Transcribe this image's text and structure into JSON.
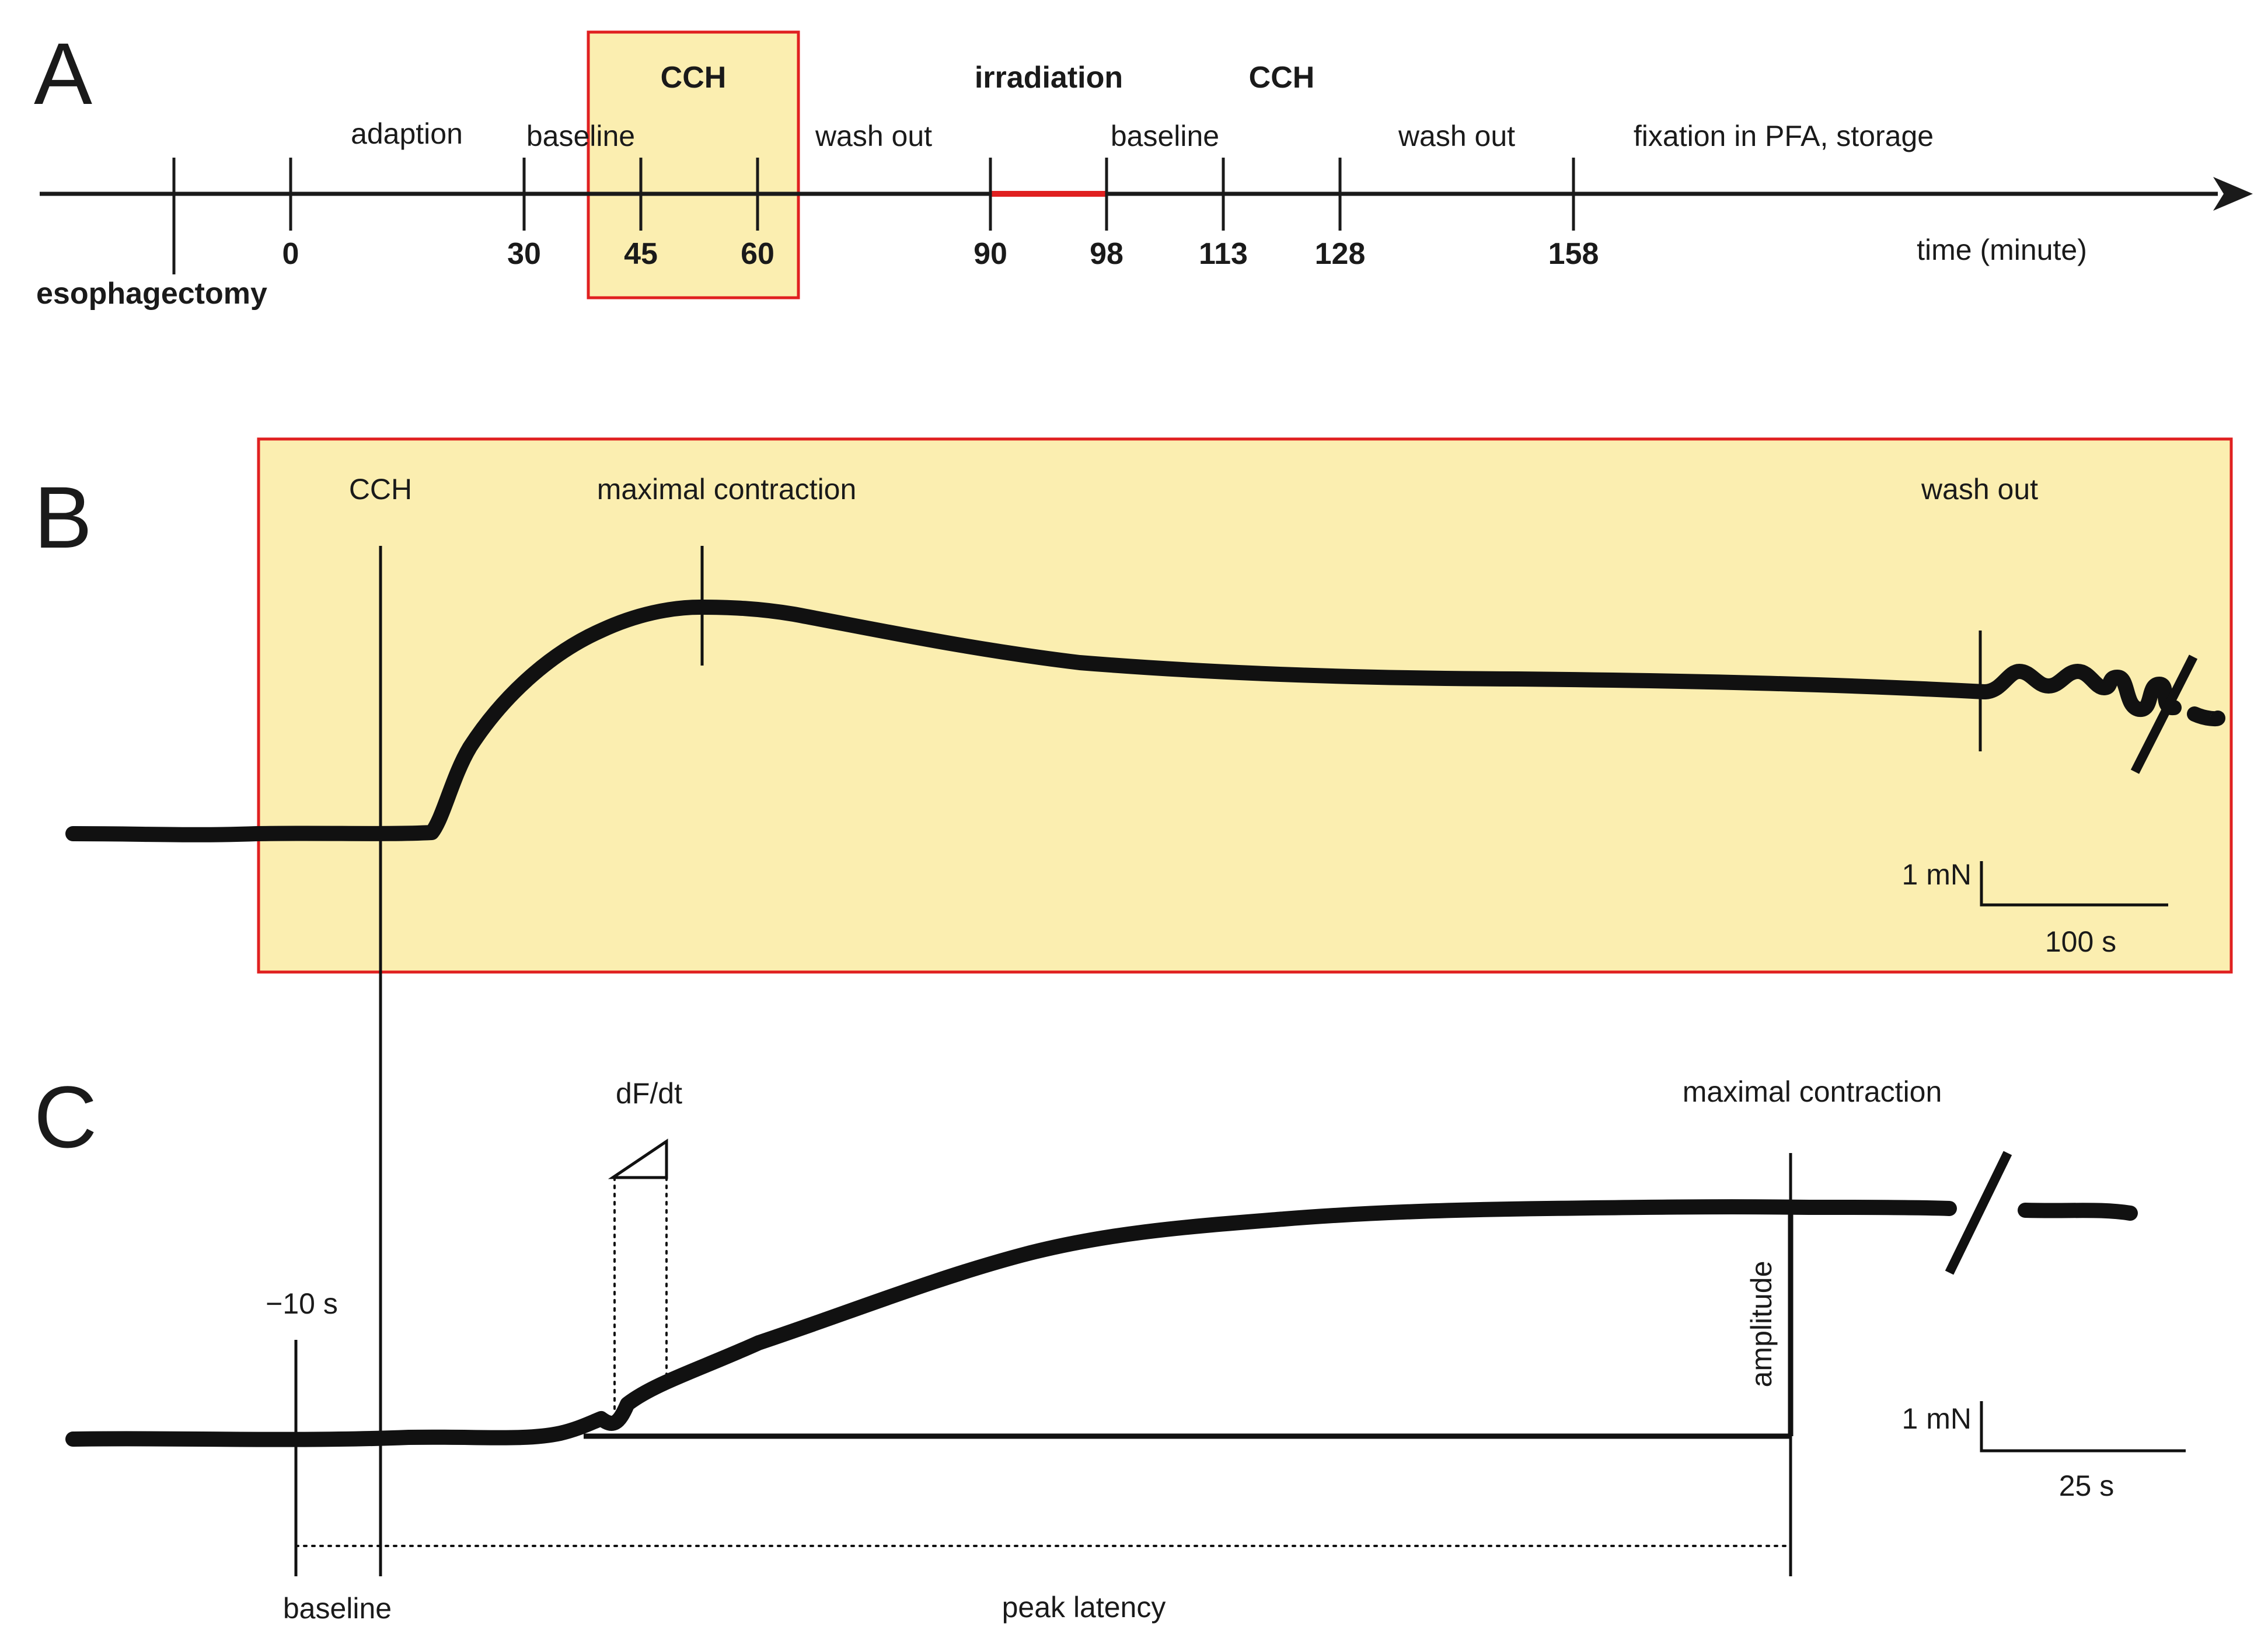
{
  "panel_a": {
    "letter": "A",
    "highlight_fill": "#fbeeb0",
    "highlight_border": "#e02020",
    "irradiation_color": "#e02020",
    "phases_bold": [
      "CCH",
      "irradiation",
      "CCH"
    ],
    "phases": [
      "adaption",
      "baseline",
      "wash out",
      "baseline",
      "wash out",
      "fixation in PFA, storage"
    ],
    "ticks": [
      "0",
      "30",
      "45",
      "60",
      "90",
      "98",
      "113",
      "128",
      "158"
    ],
    "event": "esophagectomy",
    "axis_label": "time (minute)"
  },
  "panel_b": {
    "letter": "B",
    "label_cch": "CCH",
    "label_max": "maximal contraction",
    "label_wash": "wash out",
    "scale_y": "1 mN",
    "scale_x": "100 s"
  },
  "panel_c": {
    "letter": "C",
    "label_dfdt": "dF/dt",
    "label_max": "maximal contraction",
    "label_minus10": "−10 s",
    "label_amplitude": "amplitude",
    "label_baseline": "baseline",
    "label_peak": "peak latency",
    "scale_y": "1 mN",
    "scale_x": "25 s"
  }
}
